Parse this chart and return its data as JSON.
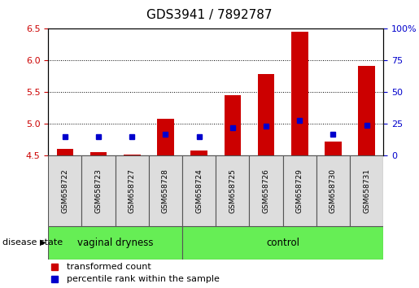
{
  "title": "GDS3941 / 7892787",
  "samples": [
    "GSM658722",
    "GSM658723",
    "GSM658727",
    "GSM658728",
    "GSM658724",
    "GSM658725",
    "GSM658726",
    "GSM658729",
    "GSM658730",
    "GSM658731"
  ],
  "transformed_count": [
    4.6,
    4.55,
    4.52,
    5.08,
    4.58,
    5.45,
    5.78,
    6.45,
    4.72,
    5.92
  ],
  "percentile_rank": [
    15,
    15,
    15,
    17,
    15,
    22,
    23,
    28,
    17,
    24
  ],
  "ylim_left": [
    4.5,
    6.5
  ],
  "ylim_right": [
    0,
    100
  ],
  "yticks_left": [
    4.5,
    5.0,
    5.5,
    6.0,
    6.5
  ],
  "yticks_right": [
    0,
    25,
    50,
    75,
    100
  ],
  "groups": [
    {
      "label": "vaginal dryness",
      "start": 0,
      "end": 4
    },
    {
      "label": "control",
      "start": 4,
      "end": 10
    }
  ],
  "bar_color": "#cc0000",
  "dot_color": "#0000cc",
  "bar_bottom": 4.5,
  "tick_label_color_left": "#cc0000",
  "tick_label_color_right": "#0000cc",
  "legend_items": [
    "transformed count",
    "percentile rank within the sample"
  ],
  "disease_state_label": "disease state",
  "bar_width": 0.5,
  "group_fill": "#66ee55",
  "sample_box_fill": "#dddddd",
  "plot_bg": "#ffffff"
}
